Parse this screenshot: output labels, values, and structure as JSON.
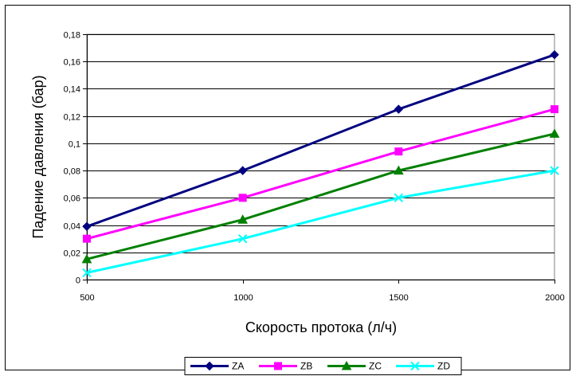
{
  "chart_data": {
    "type": "line",
    "title": "",
    "xlabel": "Скорость протока (л/ч)",
    "ylabel": "Падение давления (бар)",
    "x": [
      500,
      1000,
      1500,
      2000
    ],
    "x_tick_labels": [
      "500",
      "1000",
      "1500",
      "2000"
    ],
    "ylim": [
      0,
      0.18
    ],
    "y_ticks": [
      0,
      0.02,
      0.04,
      0.06,
      0.08,
      0.1,
      0.12,
      0.14,
      0.16,
      0.18
    ],
    "y_tick_labels": [
      "0",
      "0,02",
      "0,04",
      "0,06",
      "0,08",
      "0,1",
      "0,12",
      "0,14",
      "0,16",
      "0,18"
    ],
    "grid": "horizontal",
    "legend_position": "bottom",
    "series": [
      {
        "name": "ZA",
        "values": [
          0.039,
          0.08,
          0.125,
          0.165
        ],
        "color": "#000080",
        "marker": "diamond"
      },
      {
        "name": "ZB",
        "values": [
          0.03,
          0.06,
          0.094,
          0.125
        ],
        "color": "#ff00ff",
        "marker": "square"
      },
      {
        "name": "ZC",
        "values": [
          0.015,
          0.044,
          0.08,
          0.107
        ],
        "color": "#008000",
        "marker": "triangle"
      },
      {
        "name": "ZD",
        "values": [
          0.005,
          0.03,
          0.06,
          0.08
        ],
        "color": "#00ffff",
        "marker": "x"
      }
    ]
  }
}
